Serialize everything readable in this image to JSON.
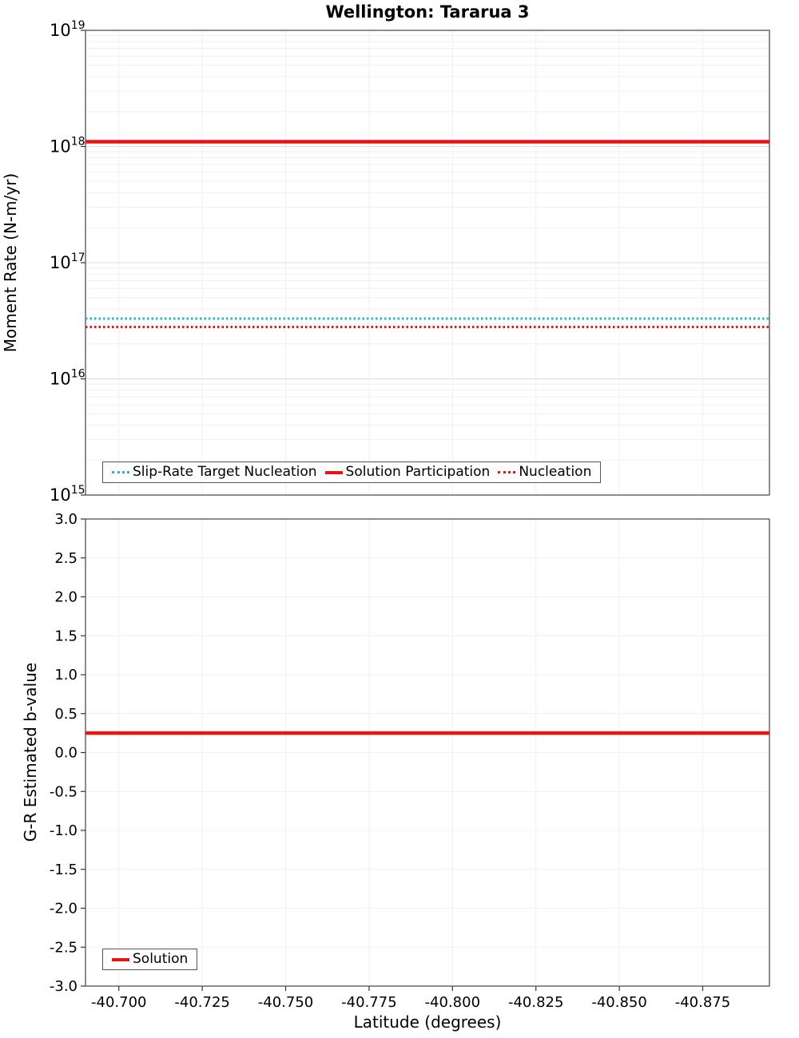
{
  "chart_data": [
    {
      "type": "line",
      "title": "Wellington: Tararua 3",
      "ylabel": "Moment Rate (N-m/yr)",
      "yscale": "log",
      "ylim": [
        1000000000000000.0,
        1e+19
      ],
      "ytick_exponents": [
        15,
        16,
        17,
        18,
        19
      ],
      "xlim": [
        -40.69,
        -40.895
      ],
      "grid": true,
      "legend_position": "bottom-left-inside",
      "series": [
        {
          "name": "Slip-Rate Target Nucleation",
          "color": "#2ab5c3",
          "dash": "dotted",
          "y": 3.3e+16
        },
        {
          "name": "Solution Participation",
          "color": "#ee1111",
          "dash": "solid",
          "y": 1.1e+18
        },
        {
          "name": "Nucleation",
          "color": "#ee1111",
          "dash": "dotted",
          "y": 2.8e+16
        }
      ]
    },
    {
      "type": "line",
      "title": "",
      "ylabel": "G-R Estimated b-value",
      "xlabel": "Latitude (degrees)",
      "yscale": "linear",
      "ylim": [
        -3.0,
        3.0
      ],
      "ytick_step": 0.5,
      "xlim": [
        -40.69,
        -40.895
      ],
      "xticks": [
        -40.7,
        -40.725,
        -40.75,
        -40.775,
        -40.8,
        -40.825,
        -40.85,
        -40.875
      ],
      "grid": true,
      "legend_position": "bottom-left-inside",
      "series": [
        {
          "name": "Solution",
          "color": "#ee1111",
          "dash": "solid",
          "y": 0.25
        }
      ]
    }
  ]
}
